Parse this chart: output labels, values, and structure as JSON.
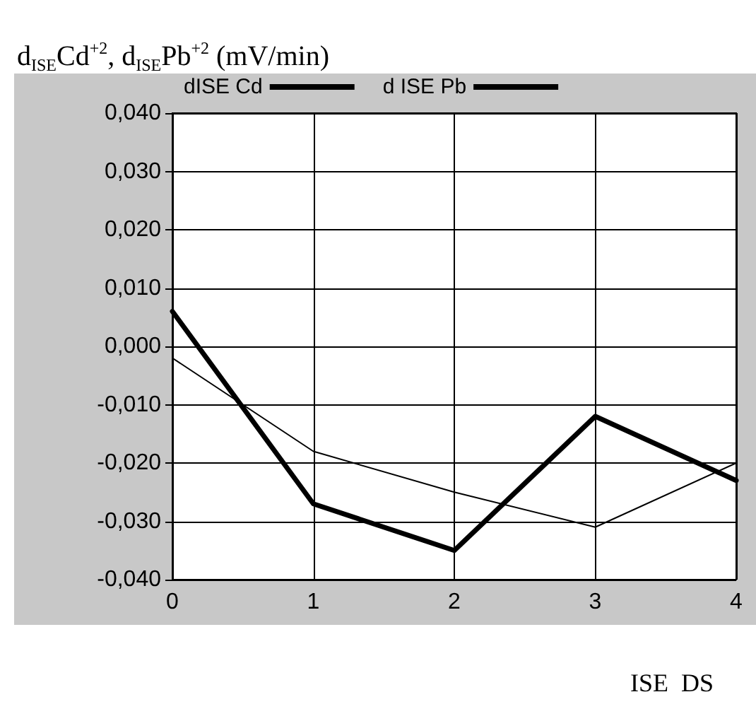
{
  "chart_data": {
    "type": "line",
    "ylabel": "d$_{ISE}$Cd$^{+2}$, d$_{ISE}$Pb$^{+2}$ (mV/min)",
    "x": [
      0,
      1,
      2,
      3,
      4
    ],
    "series": [
      {
        "name": "dISE Cd",
        "color": "#000000",
        "values": [
          0.006,
          -0.027,
          -0.035,
          -0.012,
          -0.023
        ]
      },
      {
        "name": "d ISE Pb",
        "color": "#000000",
        "values": [
          -0.002,
          -0.018,
          -0.025,
          -0.031,
          -0.02
        ]
      }
    ],
    "xlim": [
      0,
      4
    ],
    "xticks": [
      0,
      1,
      2,
      3,
      4
    ],
    "ylim": [
      -0.04,
      0.04
    ],
    "yticks": [
      {
        "value": -0.04,
        "label": "-0,040"
      },
      {
        "value": -0.03,
        "label": "-0,030"
      },
      {
        "value": -0.02,
        "label": "-0,020"
      },
      {
        "value": -0.01,
        "label": "-0,010"
      },
      {
        "value": 0,
        "label": "0,000"
      },
      {
        "value": 0.01,
        "label": "0,010"
      },
      {
        "value": 0.02,
        "label": "0,020"
      },
      {
        "value": 0.03,
        "label": "0,030"
      },
      {
        "value": 0.04,
        "label": "0,040"
      }
    ],
    "grid": true,
    "legend": "top",
    "marker": "none",
    "line_style": "solid",
    "annotations": [
      "ISE  DS"
    ]
  }
}
